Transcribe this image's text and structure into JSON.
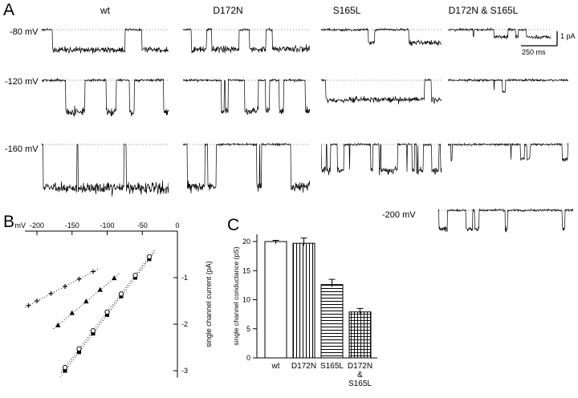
{
  "colors": {
    "ink": "#000000",
    "paper": "#ffffff",
    "baseline_dash": "#888888"
  },
  "panel_a": {
    "label": "A",
    "columns": [
      "wt",
      "D172N",
      "S165L",
      "D172N & S165L"
    ],
    "rows": [
      "-80 mV",
      "-120 mV",
      "-160 mV"
    ],
    "scale_bar": {
      "vertical_label": "1 pA",
      "horizontal_label": "250 ms"
    },
    "traces": [
      {
        "col": 0,
        "row": 0,
        "amp_pA": 1.4,
        "open_prob": 0.62,
        "dwell": 70,
        "seed": 11
      },
      {
        "col": 0,
        "row": 1,
        "amp_pA": 2.2,
        "open_prob": 0.45,
        "dwell": 35,
        "seed": 22
      },
      {
        "col": 0,
        "row": 2,
        "amp_pA": 3.0,
        "open_prob": 0.68,
        "dwell": 55,
        "seed": 33
      },
      {
        "col": 1,
        "row": 0,
        "amp_pA": 1.35,
        "open_prob": 0.55,
        "dwell": 60,
        "seed": 44
      },
      {
        "col": 1,
        "row": 1,
        "amp_pA": 2.15,
        "open_prob": 0.35,
        "dwell": 22,
        "seed": 55
      },
      {
        "col": 1,
        "row": 2,
        "amp_pA": 2.9,
        "open_prob": 0.38,
        "dwell": 14,
        "seed": 66
      },
      {
        "col": 2,
        "row": 0,
        "amp_pA": 0.9,
        "open_prob": 0.22,
        "dwell": 55,
        "seed": 77
      },
      {
        "col": 2,
        "row": 1,
        "amp_pA": 1.35,
        "open_prob": 0.5,
        "dwell": 200,
        "seed": 88
      },
      {
        "col": 2,
        "row": 2,
        "amp_pA": 1.8,
        "open_prob": 0.4,
        "dwell": 9,
        "seed": 99
      },
      {
        "col": 3,
        "row": 0,
        "amp_pA": 0.5,
        "open_prob": 0.18,
        "dwell": 12,
        "seed": 101
      },
      {
        "col": 3,
        "row": 1,
        "amp_pA": 0.75,
        "open_prob": 0.1,
        "dwell": 10,
        "seed": 112
      },
      {
        "col": 3,
        "row": 2,
        "amp_pA": 1.0,
        "open_prob": 0.15,
        "dwell": 10,
        "seed": 123
      }
    ],
    "extra_trace": {
      "label": "-200 mV",
      "column": "D172N & S165L",
      "amp_pA": 1.3,
      "open_prob": 0.12,
      "dwell": 8,
      "seed": 134
    }
  },
  "chart_data": [
    {
      "id": "panel_b",
      "panel_label": "B",
      "type": "scatter",
      "xlabel": "mV",
      "ylabel": "single channel current (pA)",
      "xlim": [
        -220,
        0
      ],
      "ylim": [
        -3.2,
        0
      ],
      "x_ticks": [
        -200,
        -150,
        -100,
        -50,
        0
      ],
      "y_ticks": [
        -1,
        -2,
        -3
      ],
      "grid": false,
      "legend_position": "none",
      "series": [
        {
          "name": "wt",
          "symbol": "filled-square",
          "line": "dotted",
          "x": [
            -40,
            -60,
            -80,
            -100,
            -120,
            -140,
            -160
          ],
          "y": [
            -0.6,
            -1.0,
            -1.4,
            -1.8,
            -2.2,
            -2.6,
            -3.0
          ]
        },
        {
          "name": "D172N",
          "symbol": "open-circle",
          "line": "dotted",
          "x": [
            -40,
            -60,
            -80,
            -100,
            -120,
            -140,
            -160
          ],
          "y": [
            -0.55,
            -0.95,
            -1.35,
            -1.74,
            -2.14,
            -2.53,
            -2.93
          ]
        },
        {
          "name": "S165L",
          "symbol": "filled-triangle",
          "line": "dotted",
          "x": [
            -90,
            -110,
            -130,
            -150,
            -170
          ],
          "y": [
            -1.01,
            -1.26,
            -1.51,
            -1.76,
            -2.02
          ]
        },
        {
          "name": "D172N & S165L",
          "symbol": "cross",
          "line": "dotted",
          "x": [
            -120,
            -140,
            -160,
            -180,
            -200,
            -212
          ],
          "y": [
            -0.87,
            -1.03,
            -1.19,
            -1.34,
            -1.5,
            -1.6
          ]
        }
      ]
    },
    {
      "id": "panel_c",
      "panel_label": "C",
      "type": "bar",
      "categories": [
        "wt",
        "D172N",
        "S165L",
        "D172N & S165L"
      ],
      "category_labels_multiline": [
        "wt",
        "D172N",
        "S165L",
        "D172N\n&\nS165L"
      ],
      "values": [
        20.0,
        19.7,
        12.6,
        7.9
      ],
      "errors": [
        0.2,
        0.9,
        0.9,
        0.6
      ],
      "bar_patterns": [
        "plain",
        "vertical-stripes",
        "horizontal-stripes",
        "crosshatch"
      ],
      "ylabel": "single channel conductance (pS)",
      "ylim": [
        0,
        22
      ],
      "y_ticks": [
        0,
        5,
        10,
        15,
        20
      ],
      "grid": false
    }
  ]
}
